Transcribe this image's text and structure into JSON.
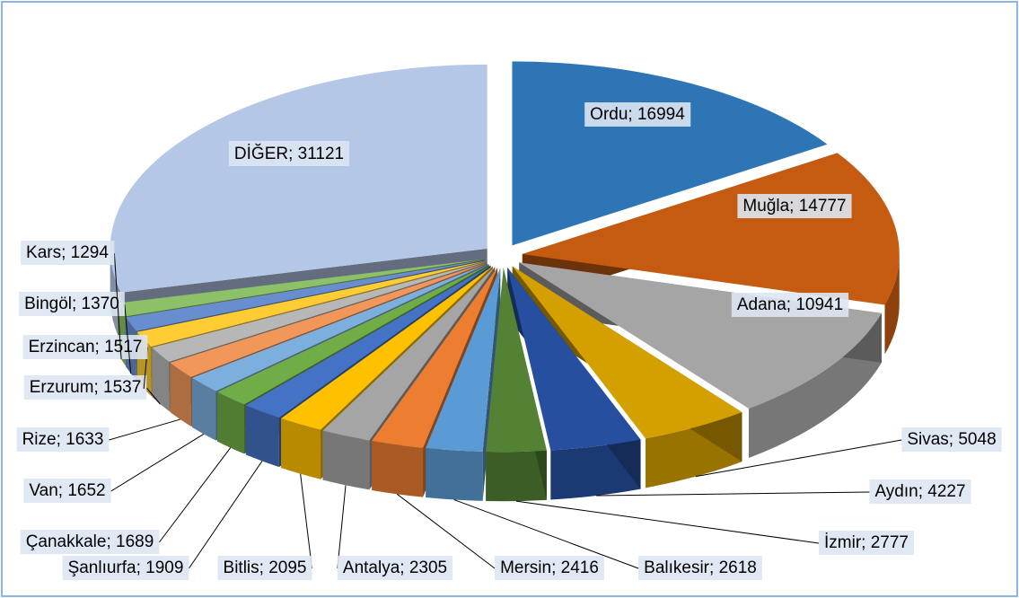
{
  "chart_data": {
    "type": "pie3d",
    "values": [
      16994,
      14777,
      10941,
      5048,
      4227,
      2777,
      2618,
      2416,
      2305,
      2095,
      1909,
      1689,
      1652,
      1633,
      1537,
      1517,
      1370,
      1294,
      31121
    ],
    "value_labels": [
      "Ordu; 16994",
      "Muğla; 14777",
      "Adana; 10941",
      "Sivas; 5048",
      "Aydın; 4227",
      "İzmir; 2777",
      "Balıkesir; 2618",
      "Mersin; 2416",
      "Antalya; 2305",
      "Bitlis; 2095",
      "Şanlıurfa; 1909",
      "Çanakkale; 1689",
      "Van; 1652",
      "Rize; 1633",
      "Erzurum; 1537",
      "Erzincan; 1517",
      "Bingöl; 1370",
      "Kars; 1294",
      "DİĞER; 31121"
    ],
    "colors": [
      "#2e75b6",
      "#c55a11",
      "#a5a5a5",
      "#d4a000",
      "#264fa0",
      "#548235",
      "#5b9bd5",
      "#ed7d31",
      "#a5a5a5",
      "#ffc000",
      "#4472c4",
      "#70ad47",
      "#7cafdd",
      "#f1975a",
      "#b7b7b7",
      "#ffcd33",
      "#698ed0",
      "#8cc168",
      "#b4c7e7"
    ]
  }
}
